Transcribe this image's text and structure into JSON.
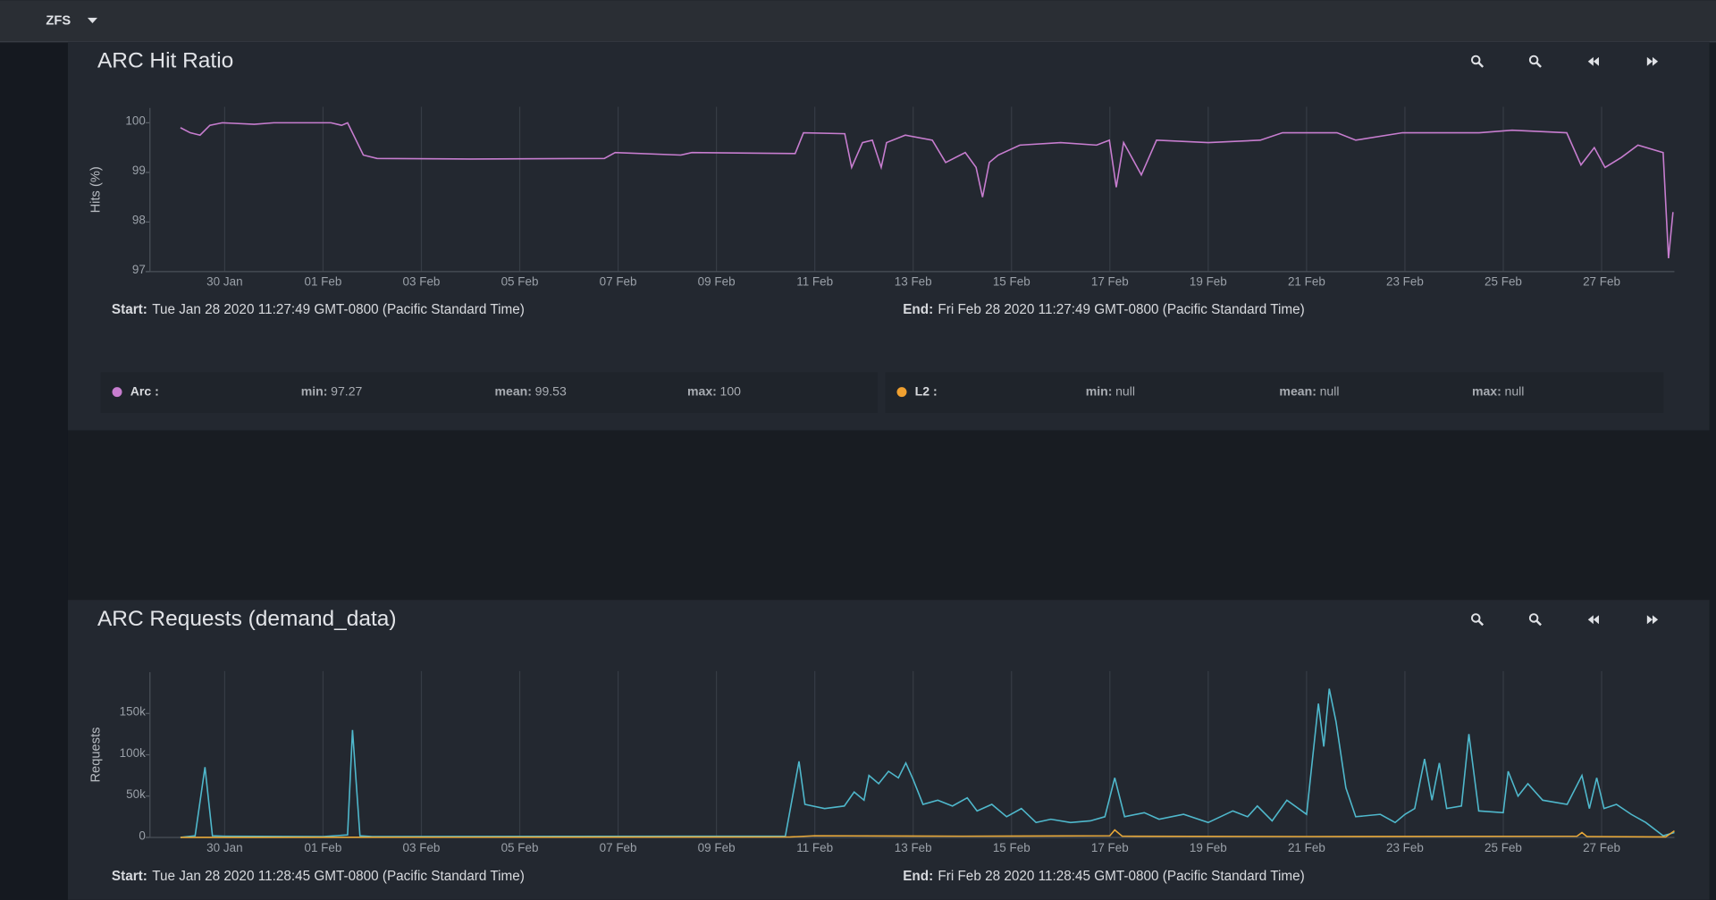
{
  "header": {
    "menu": "ZFS"
  },
  "chart_data": [
    {
      "type": "line",
      "title": "ARC Hit Ratio",
      "y_label": "Hits (%)",
      "xlim": [
        28.48,
        59.48
      ],
      "ylim": [
        97,
        100.3
      ],
      "yticks": [
        97,
        98,
        99,
        100
      ],
      "grid": true,
      "xticks": [
        {
          "value": 30,
          "label": "30 Jan"
        },
        {
          "value": 32,
          "label": "01 Feb"
        },
        {
          "value": 34,
          "label": "03 Feb"
        },
        {
          "value": 36,
          "label": "05 Feb"
        },
        {
          "value": 38,
          "label": "07 Feb"
        },
        {
          "value": 40,
          "label": "09 Feb"
        },
        {
          "value": 42,
          "label": "11 Feb"
        },
        {
          "value": 44,
          "label": "13 Feb"
        },
        {
          "value": 46,
          "label": "15 Feb"
        },
        {
          "value": 48,
          "label": "17 Feb"
        },
        {
          "value": 50,
          "label": "19 Feb"
        },
        {
          "value": 52,
          "label": "21 Feb"
        },
        {
          "value": 54,
          "label": "23 Feb"
        },
        {
          "value": 56,
          "label": "25 Feb"
        },
        {
          "value": 58,
          "label": "27 Feb"
        }
      ],
      "start_label": "Start:",
      "start": "Tue Jan 28 2020 11:27:49 GMT-0800 (Pacific Standard Time)",
      "end_label": "End:",
      "end": "Fri Feb 28 2020 11:27:49 GMT-0800 (Pacific Standard Time)",
      "stat_labels": [
        "min:",
        "mean:",
        "max:"
      ],
      "series": [
        {
          "name": "Arc :",
          "color": "#c77dcf",
          "min": 97.27,
          "mean": 99.53,
          "max": 100,
          "x": [
            29.1,
            29.3,
            29.5,
            29.7,
            29.95,
            30.6,
            31,
            32.16,
            32.38,
            32.5,
            32.82,
            33.1,
            35,
            37.72,
            37.94,
            39.27,
            39.5,
            41.6,
            41.77,
            42.61,
            42.75,
            42.97,
            43.17,
            43.35,
            43.46,
            43.84,
            44.39,
            44.66,
            45.06,
            45.28,
            45.41,
            45.55,
            45.73,
            46.17,
            47,
            47.73,
            47.99,
            48.13,
            48.28,
            48.64,
            48.95,
            50,
            51.06,
            51.51,
            52.62,
            53,
            53.95,
            54.4,
            55.51,
            56.18,
            57.29,
            57.58,
            57.85,
            58.07,
            58.4,
            58.74,
            59.25,
            59.36,
            59.45
          ],
          "values": [
            99.9,
            99.8,
            99.75,
            99.95,
            100,
            99.97,
            100,
            100,
            99.95,
            100,
            99.35,
            99.28,
            99.27,
            99.28,
            99.4,
            99.35,
            99.4,
            99.38,
            99.8,
            99.78,
            99.1,
            99.6,
            99.65,
            99.1,
            99.6,
            99.75,
            99.65,
            99.2,
            99.4,
            99.1,
            98.5,
            99.2,
            99.35,
            99.55,
            99.6,
            99.55,
            99.65,
            98.7,
            99.6,
            98.95,
            99.65,
            99.6,
            99.65,
            99.8,
            99.8,
            99.65,
            99.8,
            99.8,
            99.8,
            99.85,
            99.8,
            99.15,
            99.5,
            99.1,
            99.3,
            99.55,
            99.4,
            97.27,
            98.2
          ]
        },
        {
          "name": "L2 :",
          "color": "#f0a030",
          "min": "null",
          "mean": "null",
          "max": "null"
        }
      ]
    },
    {
      "type": "line",
      "title": "ARC Requests (demand_data)",
      "y_label": "Requests",
      "xlim": [
        28.48,
        59.48
      ],
      "ylim": [
        0,
        200000
      ],
      "yticks": [
        0,
        {
          "value": 50000,
          "label": "50k"
        },
        {
          "value": 100000,
          "label": "100k"
        },
        {
          "value": 150000,
          "label": "150k"
        }
      ],
      "grid": true,
      "xticks": [
        {
          "value": 30,
          "label": "30 Jan"
        },
        {
          "value": 32,
          "label": "01 Feb"
        },
        {
          "value": 34,
          "label": "03 Feb"
        },
        {
          "value": 36,
          "label": "05 Feb"
        },
        {
          "value": 38,
          "label": "07 Feb"
        },
        {
          "value": 40,
          "label": "09 Feb"
        },
        {
          "value": 42,
          "label": "11 Feb"
        },
        {
          "value": 44,
          "label": "13 Feb"
        },
        {
          "value": 46,
          "label": "15 Feb"
        },
        {
          "value": 48,
          "label": "17 Feb"
        },
        {
          "value": 50,
          "label": "19 Feb"
        },
        {
          "value": 52,
          "label": "21 Feb"
        },
        {
          "value": 54,
          "label": "23 Feb"
        },
        {
          "value": 56,
          "label": "25 Feb"
        },
        {
          "value": 58,
          "label": "27 Feb"
        }
      ],
      "start_label": "Start:",
      "start": "Tue Jan 28 2020 11:28:45 GMT-0800 (Pacific Standard Time)",
      "end_label": "End:",
      "end": "Fri Feb 28 2020 11:28:45 GMT-0800 (Pacific Standard Time)",
      "series": [
        {
          "color": "#4fb8cc",
          "x": [
            29.1,
            29.4,
            29.6,
            29.75,
            30,
            32,
            32.5,
            32.6,
            32.75,
            33,
            41.4,
            41.68,
            41.8,
            42.2,
            42.6,
            42.8,
            43,
            43.1,
            43.3,
            43.5,
            43.7,
            43.85,
            44,
            44.2,
            44.5,
            44.8,
            45.1,
            45.3,
            45.6,
            45.9,
            46.2,
            46.5,
            46.8,
            47.2,
            47.6,
            47.9,
            48.1,
            48.3,
            48.7,
            49,
            49.5,
            50,
            50.5,
            50.8,
            51,
            51.3,
            51.6,
            52,
            52.24,
            52.35,
            52.46,
            52.6,
            52.8,
            53,
            53.5,
            53.8,
            54,
            54.2,
            54.4,
            54.55,
            54.7,
            54.85,
            55.15,
            55.3,
            55.5,
            56,
            56.1,
            56.3,
            56.5,
            56.8,
            57.3,
            57.6,
            57.75,
            57.9,
            58.05,
            58.3,
            58.6,
            58.9,
            59.25,
            59.48
          ],
          "values": [
            0,
            2000,
            85000,
            2000,
            1500,
            1000,
            3000,
            130000,
            2000,
            1000,
            1500,
            92000,
            40000,
            35000,
            38000,
            55000,
            45000,
            75000,
            65000,
            80000,
            72000,
            90000,
            70000,
            40000,
            45000,
            38000,
            48000,
            32000,
            40000,
            25000,
            35000,
            18000,
            22000,
            18000,
            20000,
            25000,
            72000,
            25000,
            30000,
            22000,
            28000,
            18000,
            32000,
            25000,
            38000,
            20000,
            45000,
            28000,
            162000,
            110000,
            180000,
            140000,
            60000,
            25000,
            28000,
            18000,
            28000,
            35000,
            95000,
            45000,
            90000,
            35000,
            38000,
            125000,
            32000,
            30000,
            80000,
            50000,
            65000,
            45000,
            40000,
            75000,
            35000,
            72000,
            35000,
            40000,
            28000,
            18000,
            2000,
            6000
          ]
        },
        {
          "color": "#e8a838",
          "x": [
            29.1,
            41.5,
            42,
            45,
            48,
            48.1,
            48.25,
            52,
            57.5,
            57.6,
            57.7,
            59.3,
            59.48
          ],
          "values": [
            0,
            500,
            2000,
            1500,
            2000,
            9000,
            1500,
            1000,
            1500,
            6000,
            1000,
            500,
            8000
          ]
        }
      ]
    }
  ]
}
